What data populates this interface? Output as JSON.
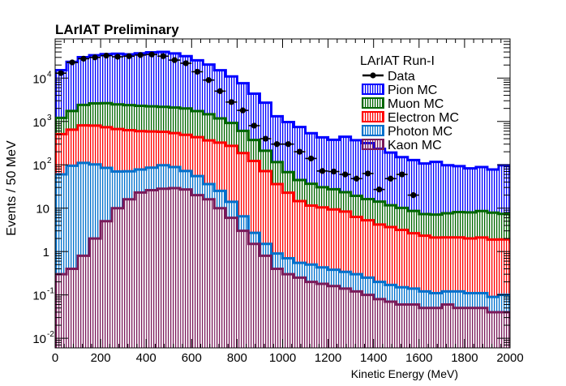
{
  "chart_data": {
    "type": "bar",
    "title": "LArIAT Preliminary",
    "xlabel": "Kinetic Energy (MeV)",
    "ylabel": "Events / 50 MeV",
    "xlim": [
      0,
      2000
    ],
    "ylim": [
      0.006,
      80000
    ],
    "yscale": "log",
    "bin_width": 50,
    "x_ticks": [
      "0",
      "200",
      "400",
      "600",
      "800",
      "1000",
      "1200",
      "1400",
      "1600",
      "1800",
      "2000"
    ],
    "x_tick_values": [
      0,
      200,
      400,
      600,
      800,
      1000,
      1200,
      1400,
      1600,
      1800,
      2000
    ],
    "y_ticks": [
      {
        "value": 0.01,
        "base": "10",
        "exp": "-2"
      },
      {
        "value": 0.1,
        "base": "10",
        "exp": "-1"
      },
      {
        "value": 1,
        "base": "1",
        "exp": ""
      },
      {
        "value": 10,
        "base": "10",
        "exp": ""
      },
      {
        "value": 100,
        "base": "10",
        "exp": "2"
      },
      {
        "value": 1000,
        "base": "10",
        "exp": "3"
      },
      {
        "value": 10000,
        "base": "10",
        "exp": "4"
      }
    ],
    "legend": {
      "title": "LArIAT Run-I",
      "position": "top-right",
      "entries": [
        "Data",
        "Pion MC",
        "Muon MC",
        "Electron MC",
        "Photon MC",
        "Kaon MC"
      ]
    },
    "series": [
      {
        "name": "Pion MC",
        "kind": "stacked-histogram",
        "color": "#0000ff",
        "values": [
          14000,
          22000,
          28000,
          31000,
          33000,
          34000,
          33000,
          35000,
          37000,
          38000,
          35000,
          30000,
          24000,
          19000,
          14000,
          10000,
          7000,
          4000,
          2500,
          1200,
          900,
          700,
          500,
          400,
          350,
          420,
          350,
          300,
          220,
          180,
          140,
          120,
          100,
          110,
          90,
          85,
          75,
          80,
          70,
          90,
          60,
          0.25,
          0,
          0,
          0,
          0,
          0,
          0,
          0,
          0
        ]
      },
      {
        "name": "Muon MC",
        "kind": "stacked-histogram",
        "color": "#006600",
        "values": [
          700,
          1100,
          1600,
          1800,
          1900,
          1800,
          1750,
          1700,
          1650,
          1600,
          1550,
          1500,
          1300,
          1100,
          850,
          650,
          420,
          250,
          140,
          80,
          45,
          30,
          25,
          20,
          18,
          15,
          13,
          11,
          10,
          8,
          7,
          6,
          5,
          5,
          5.5,
          6,
          6,
          6.5,
          6,
          5.5,
          5,
          0.1,
          0,
          0,
          0,
          0,
          0,
          0,
          0,
          0
        ]
      },
      {
        "name": "Electron MC",
        "kind": "stacked-histogram",
        "color": "#ff0000",
        "values": [
          450,
          550,
          700,
          700,
          650,
          600,
          560,
          520,
          500,
          480,
          450,
          420,
          380,
          330,
          300,
          260,
          180,
          120,
          70,
          35,
          22,
          14,
          11,
          10,
          9,
          8,
          6,
          5,
          4,
          3.5,
          3,
          2.5,
          2.2,
          2.0,
          2.0,
          2.0,
          1.9,
          2.0,
          1.8,
          1.8,
          1.6,
          0.15,
          0,
          0,
          0,
          0,
          0,
          0,
          0,
          0
        ]
      },
      {
        "name": "Photon MC",
        "kind": "stacked-histogram",
        "color": "#0070cc",
        "values": [
          60,
          95,
          110,
          100,
          80,
          60,
          55,
          55,
          60,
          70,
          60,
          45,
          35,
          20,
          15,
          8,
          3.5,
          1.2,
          0.7,
          0.5,
          0.4,
          0.3,
          0.3,
          0.25,
          0.22,
          0.2,
          0.18,
          0.15,
          0.12,
          0.1,
          0.09,
          0.08,
          0.07,
          0.06,
          0.06,
          0.07,
          0.06,
          0.06,
          0.05,
          0.06,
          0.04,
          0,
          0,
          0,
          0,
          0,
          0,
          0,
          0,
          0
        ]
      },
      {
        "name": "Kaon MC",
        "kind": "stacked-histogram",
        "color": "#7a1a5a",
        "values": [
          0.3,
          0.4,
          0.8,
          2.0,
          5.0,
          10,
          16,
          23,
          26,
          28,
          29,
          27,
          20,
          16,
          10,
          6.0,
          3.0,
          1.5,
          0.8,
          0.4,
          0.3,
          0.25,
          0.2,
          0.18,
          0.16,
          0.14,
          0.12,
          0.1,
          0.08,
          0.07,
          0.06,
          0.06,
          0.05,
          0.05,
          0.06,
          0.05,
          0.05,
          0.05,
          0.04,
          0.04,
          0.03,
          0,
          0,
          0,
          0,
          0,
          0,
          0,
          0,
          0
        ]
      },
      {
        "name": "Data",
        "kind": "points",
        "color": "#000000",
        "x": [
          25,
          75,
          125,
          175,
          225,
          275,
          325,
          375,
          425,
          475,
          525,
          575,
          625,
          675,
          725,
          775,
          825,
          875,
          925,
          975,
          1025,
          1075,
          1125,
          1175,
          1225,
          1275,
          1325,
          1375,
          1425,
          1475,
          1525,
          1575
        ],
        "values": [
          13000,
          23000,
          28000,
          30000,
          33000,
          31000,
          32000,
          34000,
          35000,
          32000,
          26000,
          22000,
          14000,
          9000,
          5000,
          2800,
          1800,
          800,
          400,
          300,
          300,
          200,
          140,
          72,
          70,
          60,
          48,
          63,
          27,
          48,
          60,
          20
        ]
      }
    ]
  }
}
